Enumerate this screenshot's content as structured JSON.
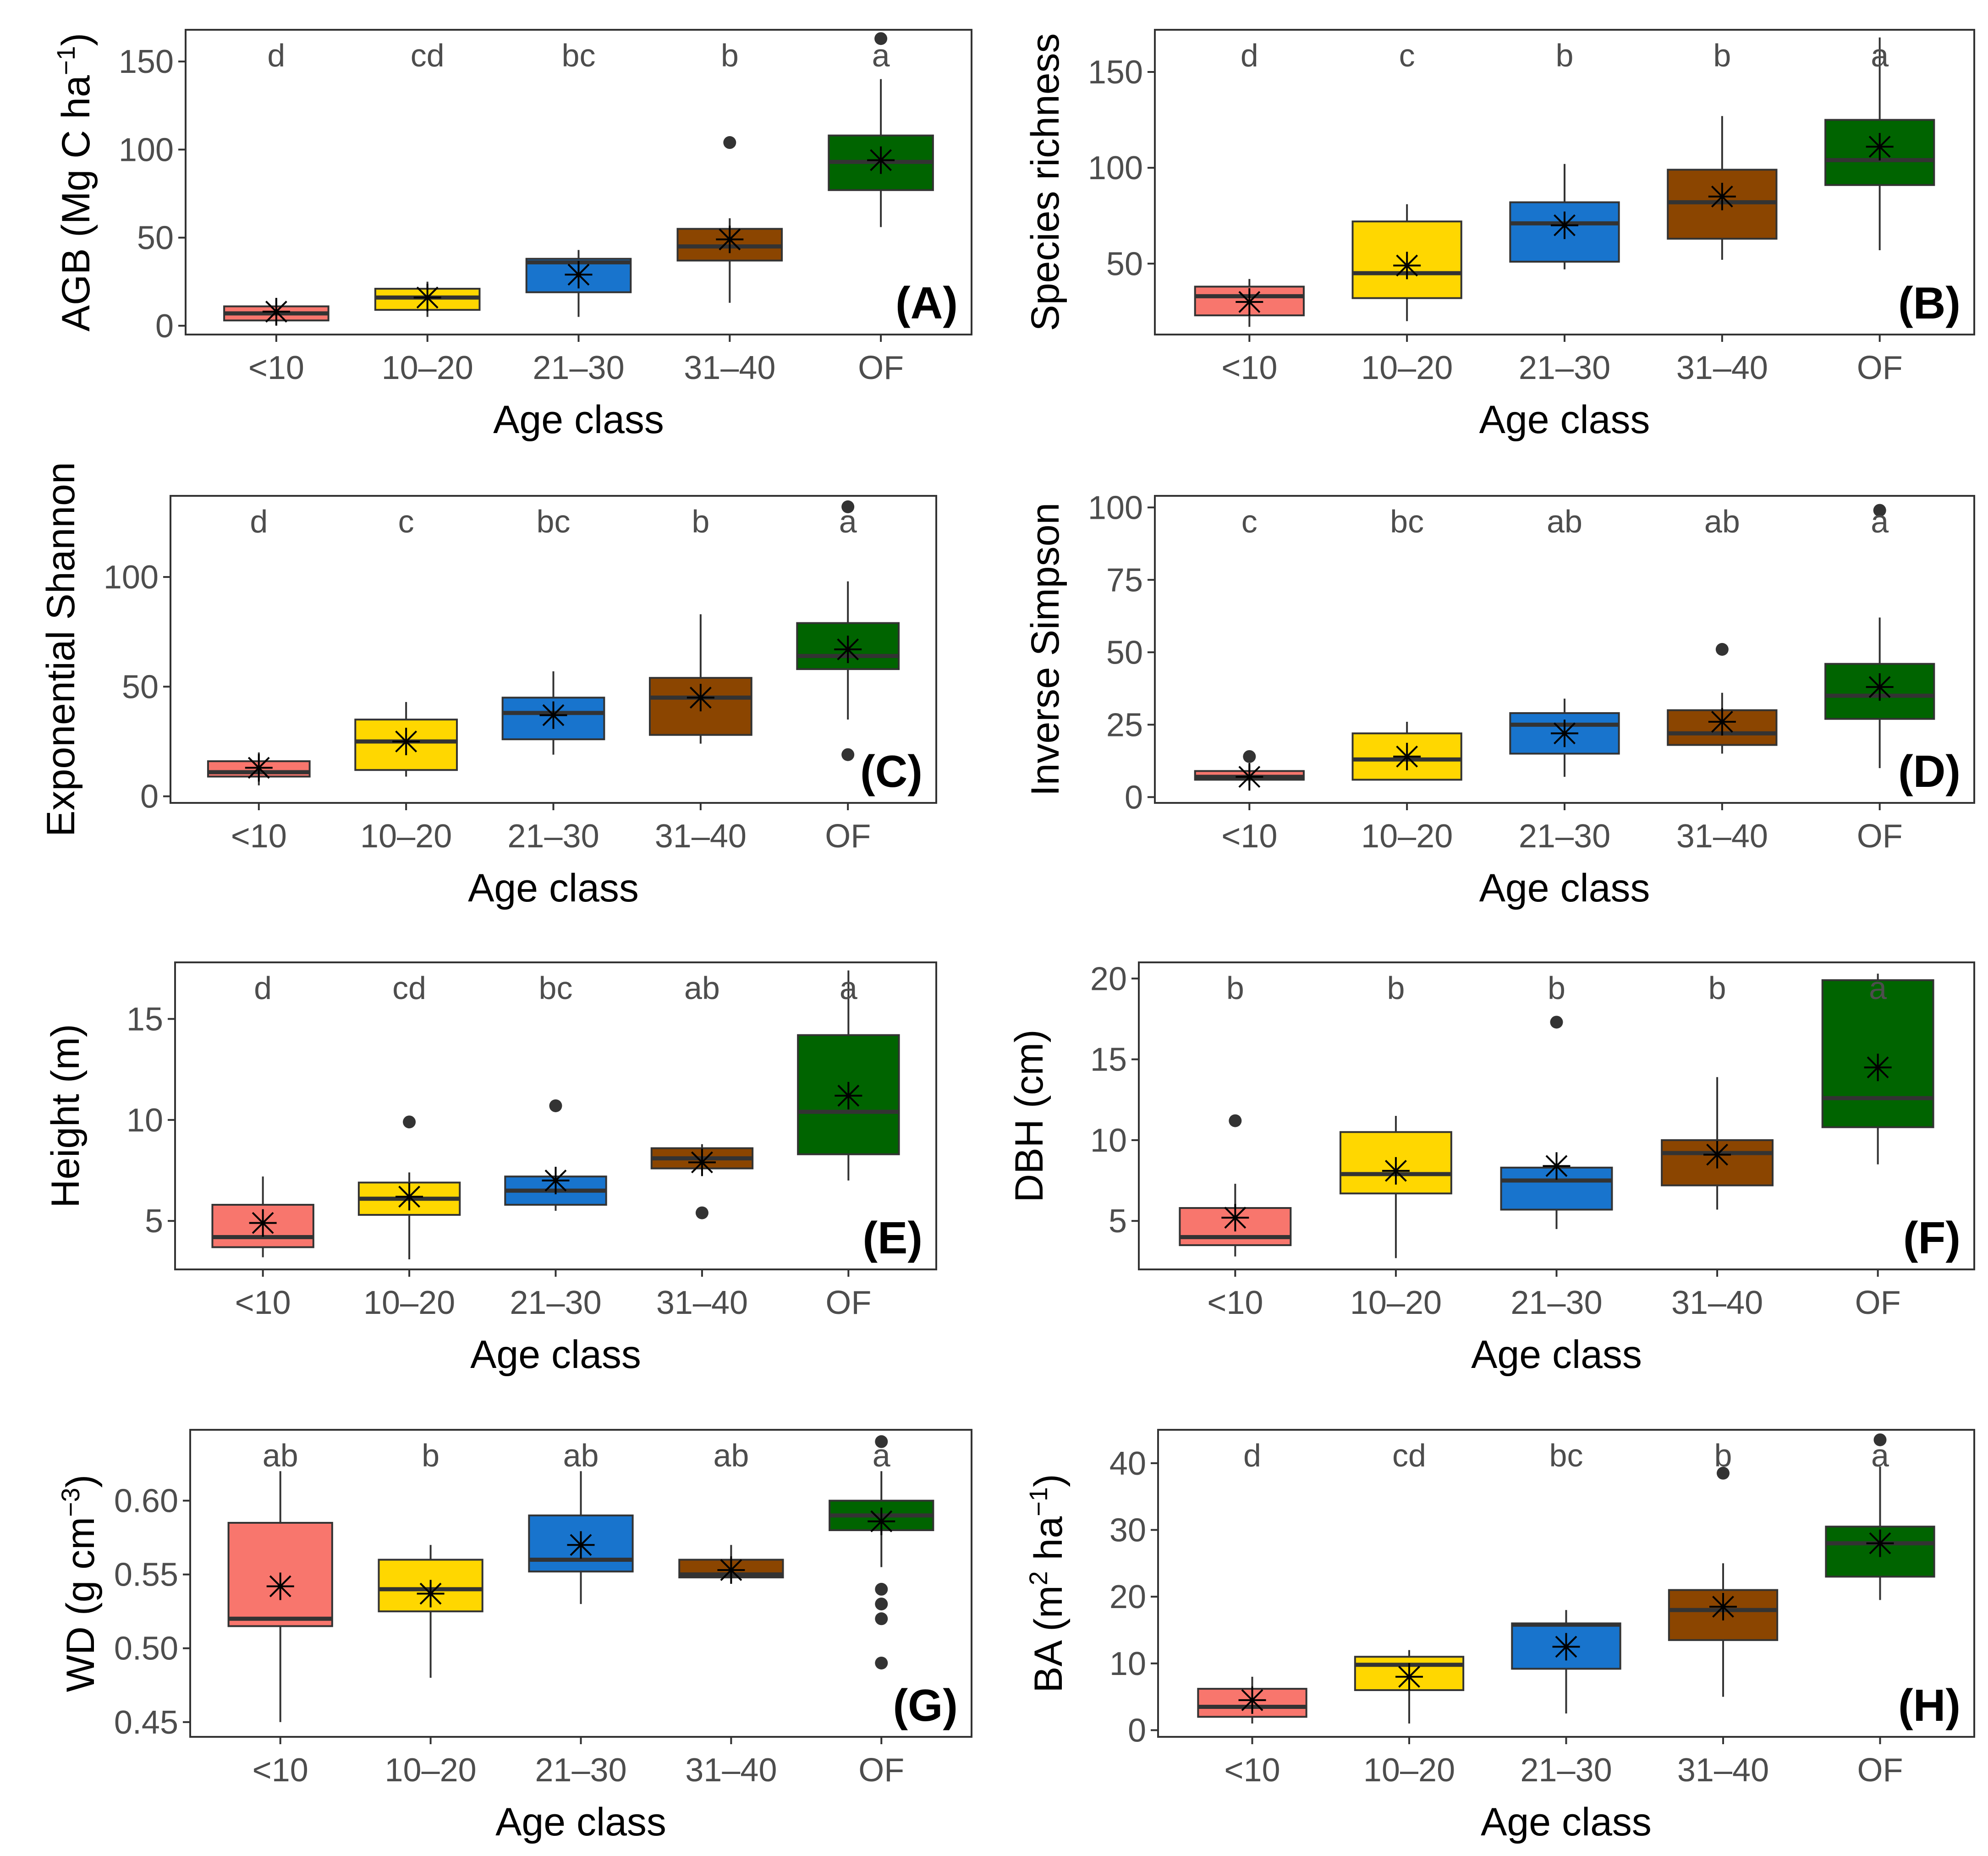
{
  "group_colors": [
    "#F8766D",
    "#FFD700",
    "#1874CD",
    "#8B4500",
    "#006400"
  ],
  "mean_marker": "asterisk",
  "chart_data": [
    {
      "type": "box",
      "panel": "(A)",
      "xlabel": "Age class",
      "ylabel": "AGB (Mg C ha",
      "ylabel_sup": "−1",
      "ylabel_end": ")",
      "categories": [
        "<10",
        "10–20",
        "21–30",
        "31–40",
        "OF"
      ],
      "ylim": [
        -5,
        168
      ],
      "yticks": [
        0,
        50,
        100,
        150
      ],
      "boxes": [
        {
          "lower": 0,
          "q1": 3,
          "median": 7,
          "q3": 11,
          "upper": 15,
          "mean": 8,
          "outliers": []
        },
        {
          "lower": 5,
          "q1": 9,
          "median": 16,
          "q3": 21,
          "upper": 25,
          "mean": 16,
          "outliers": []
        },
        {
          "lower": 5,
          "q1": 19,
          "median": 36,
          "q3": 38,
          "upper": 43,
          "mean": 29,
          "outliers": []
        },
        {
          "lower": 13,
          "q1": 37,
          "median": 45,
          "q3": 55,
          "upper": 61,
          "mean": 49,
          "outliers": [
            104
          ]
        },
        {
          "lower": 56,
          "q1": 77,
          "median": 93,
          "q3": 108,
          "upper": 140,
          "mean": 94,
          "outliers": [
            163
          ]
        }
      ],
      "letters": [
        "d",
        "cd",
        "bc",
        "b",
        "a"
      ]
    },
    {
      "type": "box",
      "panel": "(B)",
      "xlabel": "Age class",
      "ylabel": "Species richness",
      "categories": [
        "<10",
        "10–20",
        "21–30",
        "31–40",
        "OF"
      ],
      "ylim": [
        13,
        172
      ],
      "yticks": [
        50,
        100,
        150
      ],
      "boxes": [
        {
          "lower": 17,
          "q1": 23,
          "median": 33,
          "q3": 38,
          "upper": 42,
          "mean": 30,
          "outliers": []
        },
        {
          "lower": 20,
          "q1": 32,
          "median": 45,
          "q3": 72,
          "upper": 81,
          "mean": 49,
          "outliers": []
        },
        {
          "lower": 47,
          "q1": 51,
          "median": 71,
          "q3": 82,
          "upper": 102,
          "mean": 70,
          "outliers": []
        },
        {
          "lower": 52,
          "q1": 63,
          "median": 82,
          "q3": 99,
          "upper": 127,
          "mean": 85,
          "outliers": []
        },
        {
          "lower": 57,
          "q1": 91,
          "median": 104,
          "q3": 125,
          "upper": 168,
          "mean": 111,
          "outliers": []
        }
      ],
      "letters": [
        "d",
        "c",
        "b",
        "b",
        "a"
      ]
    },
    {
      "type": "box",
      "panel": "(C)",
      "xlabel": "Age class",
      "ylabel": "Exponential Shannon",
      "categories": [
        "<10",
        "10–20",
        "21–30",
        "31–40",
        "OF"
      ],
      "ylim": [
        -3,
        137
      ],
      "yticks": [
        0,
        50,
        100
      ],
      "boxes": [
        {
          "lower": 5,
          "q1": 9,
          "median": 11,
          "q3": 16,
          "upper": 20,
          "mean": 13,
          "outliers": []
        },
        {
          "lower": 9,
          "q1": 12,
          "median": 25,
          "q3": 35,
          "upper": 43,
          "mean": 25,
          "outliers": []
        },
        {
          "lower": 19,
          "q1": 26,
          "median": 38,
          "q3": 45,
          "upper": 57,
          "mean": 37,
          "outliers": []
        },
        {
          "lower": 24,
          "q1": 28,
          "median": 45,
          "q3": 54,
          "upper": 83,
          "mean": 45,
          "outliers": []
        },
        {
          "lower": 35,
          "q1": 58,
          "median": 64,
          "q3": 79,
          "upper": 98,
          "mean": 67,
          "outliers": [
            19,
            132
          ]
        }
      ],
      "letters": [
        "d",
        "c",
        "bc",
        "b",
        "a"
      ]
    },
    {
      "type": "box",
      "panel": "(D)",
      "xlabel": "Age class",
      "ylabel": "Inverse Simpson",
      "categories": [
        "<10",
        "10–20",
        "21–30",
        "31–40",
        "OF"
      ],
      "ylim": [
        -2,
        104
      ],
      "yticks": [
        0,
        25,
        50,
        75,
        100
      ],
      "boxes": [
        {
          "lower": 4,
          "q1": 6,
          "median": 7,
          "q3": 9,
          "upper": 11,
          "mean": 7,
          "outliers": [
            14
          ]
        },
        {
          "lower": 6,
          "q1": 6,
          "median": 13,
          "q3": 22,
          "upper": 26,
          "mean": 14,
          "outliers": []
        },
        {
          "lower": 7,
          "q1": 15,
          "median": 25,
          "q3": 29,
          "upper": 34,
          "mean": 22,
          "outliers": []
        },
        {
          "lower": 15,
          "q1": 18,
          "median": 22,
          "q3": 30,
          "upper": 36,
          "mean": 26,
          "outliers": [
            51
          ]
        },
        {
          "lower": 10,
          "q1": 27,
          "median": 35,
          "q3": 46,
          "upper": 62,
          "mean": 38,
          "outliers": [
            99
          ]
        }
      ],
      "letters": [
        "c",
        "bc",
        "ab",
        "ab",
        "a"
      ]
    },
    {
      "type": "box",
      "panel": "(E)",
      "xlabel": "Age class",
      "ylabel": "Height (m)",
      "categories": [
        "<10",
        "10–20",
        "21–30",
        "31–40",
        "OF"
      ],
      "ylim": [
        2.6,
        17.8
      ],
      "yticks": [
        5,
        10,
        15
      ],
      "boxes": [
        {
          "lower": 3.2,
          "q1": 3.7,
          "median": 4.2,
          "q3": 5.8,
          "upper": 7.2,
          "mean": 4.9,
          "outliers": []
        },
        {
          "lower": 3.1,
          "q1": 5.3,
          "median": 6.1,
          "q3": 6.9,
          "upper": 7.4,
          "mean": 6.2,
          "outliers": [
            9.9
          ]
        },
        {
          "lower": 5.5,
          "q1": 5.8,
          "median": 6.5,
          "q3": 7.2,
          "upper": 7.4,
          "mean": 7.0,
          "outliers": [
            10.7
          ]
        },
        {
          "lower": 7.5,
          "q1": 7.6,
          "median": 8.1,
          "q3": 8.6,
          "upper": 8.8,
          "mean": 7.9,
          "outliers": [
            5.4
          ]
        },
        {
          "lower": 7.0,
          "q1": 8.3,
          "median": 10.4,
          "q3": 14.2,
          "upper": 17.4,
          "mean": 11.2,
          "outliers": []
        }
      ],
      "letters": [
        "d",
        "cd",
        "bc",
        "ab",
        "a"
      ]
    },
    {
      "type": "box",
      "panel": "(F)",
      "xlabel": "Age class",
      "ylabel": "DBH (cm)",
      "categories": [
        "<10",
        "10–20",
        "21–30",
        "31–40",
        "OF"
      ],
      "ylim": [
        2.0,
        21.0
      ],
      "yticks": [
        5,
        10,
        15,
        20
      ],
      "boxes": [
        {
          "lower": 2.8,
          "q1": 3.5,
          "median": 4.0,
          "q3": 5.8,
          "upper": 7.3,
          "mean": 5.2,
          "outliers": [
            11.2
          ]
        },
        {
          "lower": 2.7,
          "q1": 6.7,
          "median": 7.9,
          "q3": 10.5,
          "upper": 11.5,
          "mean": 8.1,
          "outliers": []
        },
        {
          "lower": 4.5,
          "q1": 5.7,
          "median": 7.5,
          "q3": 8.3,
          "upper": 8.6,
          "mean": 8.4,
          "outliers": [
            17.3
          ]
        },
        {
          "lower": 5.7,
          "q1": 7.2,
          "median": 9.2,
          "q3": 10.0,
          "upper": 13.9,
          "mean": 9.1,
          "outliers": []
        },
        {
          "lower": 8.5,
          "q1": 10.8,
          "median": 12.6,
          "q3": 19.9,
          "upper": 20.3,
          "mean": 14.5,
          "outliers": []
        }
      ],
      "letters": [
        "b",
        "b",
        "b",
        "b",
        "a"
      ]
    },
    {
      "type": "box",
      "panel": "(G)",
      "xlabel": "Age class",
      "ylabel": "WD (g cm",
      "ylabel_sup": "−3",
      "ylabel_end": ")",
      "categories": [
        "<10",
        "10–20",
        "21–30",
        "31–40",
        "OF"
      ],
      "ylim": [
        0.44,
        0.648
      ],
      "yticks": [
        0.45,
        0.5,
        0.55,
        0.6
      ],
      "ytick_labels": [
        "0.45",
        "0.50",
        "0.55",
        "0.60"
      ],
      "boxes": [
        {
          "lower": 0.45,
          "q1": 0.515,
          "median": 0.52,
          "q3": 0.585,
          "upper": 0.62,
          "mean": 0.542,
          "outliers": []
        },
        {
          "lower": 0.48,
          "q1": 0.525,
          "median": 0.54,
          "q3": 0.56,
          "upper": 0.57,
          "mean": 0.537,
          "outliers": []
        },
        {
          "lower": 0.53,
          "q1": 0.552,
          "median": 0.56,
          "q3": 0.59,
          "upper": 0.62,
          "mean": 0.57,
          "outliers": []
        },
        {
          "lower": 0.548,
          "q1": 0.548,
          "median": 0.55,
          "q3": 0.56,
          "upper": 0.57,
          "mean": 0.553,
          "outliers": []
        },
        {
          "lower": 0.555,
          "q1": 0.58,
          "median": 0.59,
          "q3": 0.6,
          "upper": 0.62,
          "mean": 0.586,
          "outliers": [
            0.49,
            0.52,
            0.53,
            0.54,
            0.64
          ]
        }
      ],
      "letters": [
        "ab",
        "b",
        "ab",
        "ab",
        "a"
      ]
    },
    {
      "type": "box",
      "panel": "(H)",
      "xlabel": "Age class",
      "ylabel": "BA (m",
      "ylabel_sup": "2",
      "ylabel_mid": " ha",
      "ylabel_sup2": "−1",
      "ylabel_end": ")",
      "categories": [
        "<10",
        "10–20",
        "21–30",
        "31–40",
        "OF"
      ],
      "ylim": [
        -1,
        45
      ],
      "yticks": [
        0,
        10,
        20,
        30,
        40
      ],
      "boxes": [
        {
          "lower": 1.0,
          "q1": 2.0,
          "median": 3.5,
          "q3": 6.2,
          "upper": 8.0,
          "mean": 4.5,
          "outliers": []
        },
        {
          "lower": 1.0,
          "q1": 6.0,
          "median": 9.8,
          "q3": 11.0,
          "upper": 12.0,
          "mean": 8.0,
          "outliers": []
        },
        {
          "lower": 2.5,
          "q1": 9.2,
          "median": 15.8,
          "q3": 16.0,
          "upper": 18.0,
          "mean": 12.5,
          "outliers": []
        },
        {
          "lower": 5.0,
          "q1": 13.5,
          "median": 18.0,
          "q3": 21.0,
          "upper": 25.0,
          "mean": 18.5,
          "outliers": [
            38.5
          ]
        },
        {
          "lower": 19.5,
          "q1": 23.0,
          "median": 28.0,
          "q3": 30.5,
          "upper": 39.5,
          "mean": 28.0,
          "outliers": [
            43.5
          ]
        }
      ],
      "letters": [
        "d",
        "cd",
        "bc",
        "b",
        "a"
      ]
    }
  ]
}
